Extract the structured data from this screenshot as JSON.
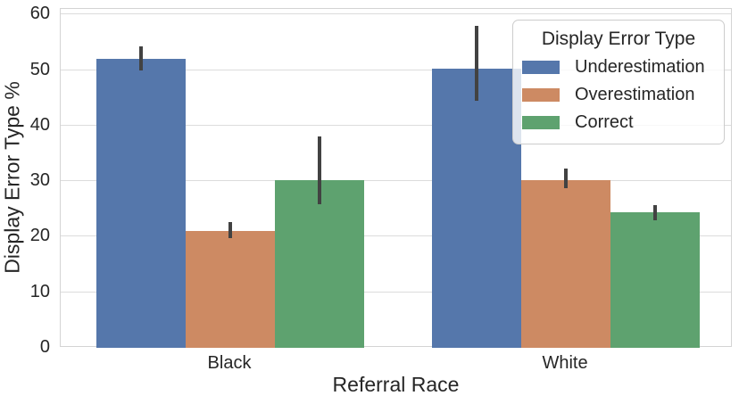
{
  "chart_data": {
    "type": "bar",
    "title": "",
    "xlabel": "Referral Race",
    "ylabel": "Display Error Type %",
    "categories": [
      "Black",
      "White"
    ],
    "series": [
      {
        "name": "Underestimation",
        "color": "#5577ab",
        "values": [
          52.0,
          50.2
        ],
        "ci_low": [
          50.0,
          44.5
        ],
        "ci_high": [
          54.3,
          57.9
        ]
      },
      {
        "name": "Overestimation",
        "color": "#cd8a63",
        "values": [
          21.0,
          30.2
        ],
        "ci_low": [
          19.7,
          28.7
        ],
        "ci_high": [
          22.7,
          32.2
        ]
      },
      {
        "name": "Correct",
        "color": "#5ea26f",
        "values": [
          30.2,
          24.4
        ],
        "ci_low": [
          25.8,
          23.0
        ],
        "ci_high": [
          38.0,
          25.7
        ]
      }
    ],
    "ylim": [
      0,
      61
    ],
    "yticks": [
      0,
      10,
      20,
      30,
      40,
      50,
      60
    ],
    "grid": true,
    "legend_title": "Display Error Type",
    "legend_position": "upper right",
    "error_bar_color": "#424242"
  }
}
